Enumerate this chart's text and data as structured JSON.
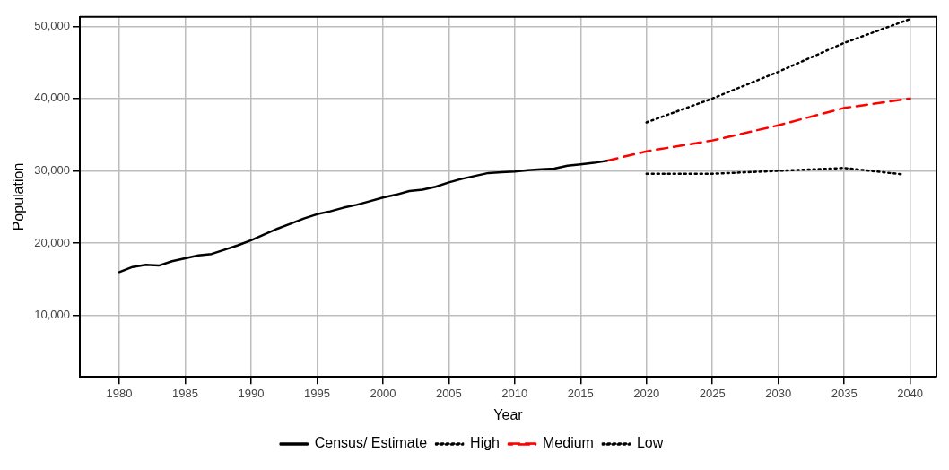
{
  "chart_data": {
    "type": "line",
    "xlabel": "Year",
    "ylabel": "Population",
    "xlim": [
      1977,
      2042
    ],
    "xticks": [
      1980,
      1985,
      1990,
      1995,
      2000,
      2005,
      2010,
      2015,
      2020,
      2025,
      2030,
      2035,
      2040
    ],
    "ylim": [
      1500,
      51300
    ],
    "yticks": [
      {
        "value": 10000,
        "label": "10,000"
      },
      {
        "value": 20000,
        "label": "20,000"
      },
      {
        "value": 30000,
        "label": "30,000"
      },
      {
        "value": 40000,
        "label": "40,000"
      },
      {
        "value": 50000,
        "label": "50,000"
      }
    ],
    "grid": true,
    "legend": "bottom",
    "marker": "none",
    "series": [
      {
        "name": "Census/ Estimate",
        "color": "#000000",
        "line_style": "solid",
        "x": [
          1980,
          1981,
          1982,
          1983,
          1984,
          1985,
          1986,
          1987,
          1988,
          1989,
          1990,
          1991,
          1992,
          1993,
          1994,
          1995,
          1996,
          1997,
          1998,
          1999,
          2000,
          2001,
          2002,
          2003,
          2004,
          2005,
          2006,
          2007,
          2008,
          2009,
          2010,
          2011,
          2012,
          2013,
          2014,
          2015,
          2016,
          2017
        ],
        "values": [
          16000,
          16700,
          17000,
          16900,
          17500,
          17900,
          18300,
          18500,
          19100,
          19700,
          20400,
          21200,
          22000,
          22700,
          23400,
          24000,
          24400,
          24900,
          25300,
          25800,
          26300,
          26700,
          27200,
          27400,
          27800,
          28400,
          28900,
          29300,
          29700,
          29800,
          29900,
          30100,
          30200,
          30300,
          30700,
          30900,
          31100,
          31400
        ]
      },
      {
        "name": "High",
        "color": "#000000",
        "line_style": "dotted",
        "x": [
          2020,
          2025,
          2030,
          2035,
          2040
        ],
        "values": [
          36700,
          40000,
          43700,
          47700,
          51000
        ]
      },
      {
        "name": "Medium",
        "color": "#ff0000",
        "line_style": "dashed",
        "x": [
          2017,
          2020,
          2025,
          2030,
          2035,
          2040
        ],
        "values": [
          31400,
          32700,
          34200,
          36300,
          38700,
          40000
        ]
      },
      {
        "name": "Low",
        "color": "#000000",
        "line_style": "dotted",
        "x": [
          2020,
          2025,
          2030,
          2035,
          2039.5
        ],
        "values": [
          29600,
          29600,
          30000,
          30400,
          29500
        ]
      }
    ]
  }
}
